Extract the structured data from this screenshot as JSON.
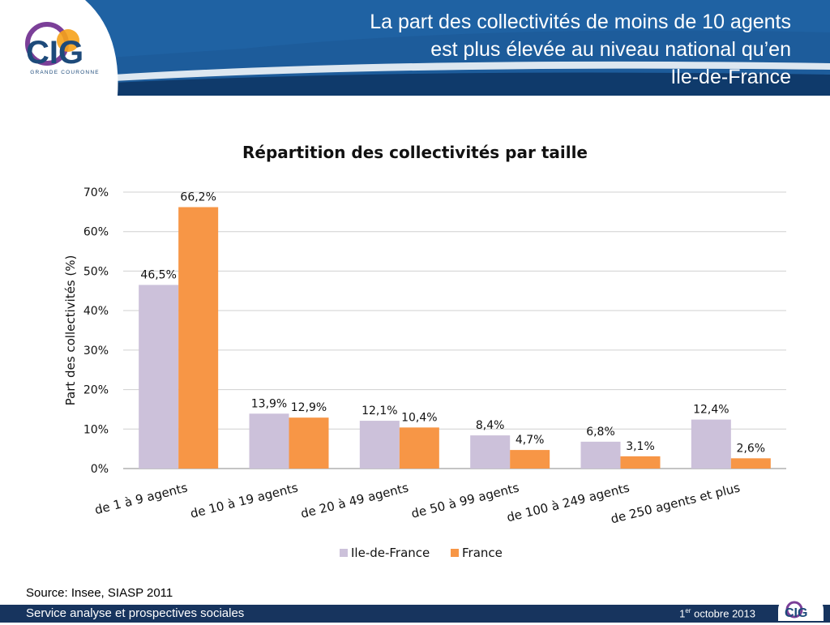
{
  "slide": {
    "title_lines": [
      "La part des collectivités de moins de 10 agents",
      "est plus élevée au niveau national qu’en",
      "Ile-de-France"
    ],
    "logo_text": "CIG",
    "logo_subtitle": "GRANDE COURONNE",
    "source": "Source: Insee, SIASP 2011",
    "footer_left": "Service analyse et prospectives sociales",
    "footer_date_day": "1",
    "footer_date_sup": "er",
    "footer_date_rest": " octobre 2013",
    "colors": {
      "header_blue": "#1d5c9b",
      "footer_navy": "#17345e"
    }
  },
  "chart_data": {
    "type": "bar",
    "title": "Répartition des collectivités par taille",
    "ylabel": "Part des collectivités (%)",
    "xlabel": "",
    "categories": [
      "de 1 à 9 agents",
      "de 10 à 19 agents",
      "de 20 à 49 agents",
      "de 50 à 99 agents",
      "de 100 à 249 agents",
      "de 250 agents et plus"
    ],
    "series": [
      {
        "name": "Ile-de-France",
        "values": [
          46.5,
          13.9,
          12.1,
          8.4,
          6.8,
          12.4
        ],
        "labels": [
          "46,5%",
          "13,9%",
          "12,1%",
          "8,4%",
          "6,8%",
          "12,4%"
        ],
        "color": "#ccc1da"
      },
      {
        "name": "France",
        "values": [
          66.2,
          12.9,
          10.4,
          4.7,
          3.1,
          2.6
        ],
        "labels": [
          "66,2%",
          "12,9%",
          "10,4%",
          "4,7%",
          "3,1%",
          "2,6%"
        ],
        "color": "#f79646"
      }
    ],
    "ylim": [
      0,
      70
    ],
    "yticks": [
      0,
      10,
      20,
      30,
      40,
      50,
      60,
      70
    ],
    "ytick_labels": [
      "0%",
      "10%",
      "20%",
      "30%",
      "40%",
      "50%",
      "60%",
      "70%"
    ],
    "grid": true,
    "legend": "bottom"
  }
}
